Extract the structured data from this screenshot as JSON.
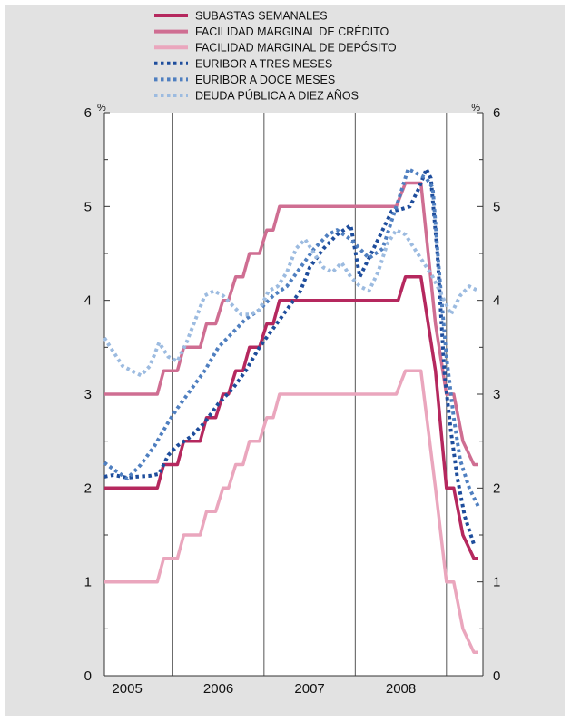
{
  "chart_data": {
    "type": "line",
    "title": "",
    "xlabel": "",
    "ylabel": "%",
    "ylabel_right": "%",
    "ylim": [
      0,
      6
    ],
    "y_ticks": [
      "0",
      "1",
      "2",
      "3",
      "4",
      "5",
      "6"
    ],
    "x_range": [
      2004.75,
      2008.9
    ],
    "x_ticks": [
      {
        "label": "2005",
        "at": 2005.0
      },
      {
        "label": "2006",
        "at": 2006.0
      },
      {
        "label": "2007",
        "at": 2007.0
      },
      {
        "label": "2008",
        "at": 2008.0
      }
    ],
    "year_boundaries": [
      2005.5,
      2006.5,
      2007.5,
      2008.5
    ],
    "grid": false,
    "legend_position": "top",
    "series": [
      {
        "name": "SUBASTAS SEMANALES",
        "color": "#b5285e",
        "style": "solid",
        "x": [
          2004.75,
          2005.33,
          2005.4,
          2005.55,
          2005.62,
          2005.8,
          2005.87,
          2005.97,
          2006.05,
          2006.11,
          2006.19,
          2006.27,
          2006.34,
          2006.45,
          2006.53,
          2006.6,
          2006.67,
          2006.85,
          2006.93,
          2007.45,
          2007.53,
          2007.7,
          2007.77,
          2007.97,
          2008.05,
          2008.22,
          2008.38,
          2008.5,
          2008.58,
          2008.68,
          2008.8,
          2008.85
        ],
        "y": [
          2,
          2,
          2.25,
          2.25,
          2.5,
          2.5,
          2.75,
          2.75,
          3,
          3,
          3.25,
          3.25,
          3.5,
          3.5,
          3.75,
          3.75,
          4,
          4,
          4,
          4,
          4,
          4,
          4,
          4,
          4.25,
          4.25,
          3.25,
          2.0,
          2.0,
          1.5,
          1.25,
          1.25
        ]
      },
      {
        "name": "FACILIDAD MARGINAL DE CRÉDITO",
        "color": "#cf6e92",
        "style": "solid",
        "x": [
          2004.75,
          2005.33,
          2005.4,
          2005.55,
          2005.62,
          2005.8,
          2005.87,
          2005.97,
          2006.05,
          2006.11,
          2006.19,
          2006.27,
          2006.34,
          2006.45,
          2006.53,
          2006.6,
          2006.67,
          2006.85,
          2006.93,
          2007.95,
          2008.05,
          2008.22,
          2008.38,
          2008.5,
          2008.58,
          2008.68,
          2008.8,
          2008.85
        ],
        "y": [
          3,
          3,
          3.25,
          3.25,
          3.5,
          3.5,
          3.75,
          3.75,
          4,
          4,
          4.25,
          4.25,
          4.5,
          4.5,
          4.75,
          4.75,
          5,
          5,
          5,
          5,
          5.25,
          5.25,
          3.75,
          3.0,
          3.0,
          2.5,
          2.25,
          2.25
        ]
      },
      {
        "name": "FACILIDAD MARGINAL DE DEPÓSITO",
        "color": "#eaa6bd",
        "style": "solid",
        "x": [
          2004.75,
          2005.33,
          2005.4,
          2005.55,
          2005.62,
          2005.8,
          2005.87,
          2005.97,
          2006.05,
          2006.11,
          2006.19,
          2006.27,
          2006.34,
          2006.45,
          2006.53,
          2006.6,
          2006.67,
          2006.85,
          2006.93,
          2007.95,
          2008.05,
          2008.22,
          2008.38,
          2008.5,
          2008.58,
          2008.68,
          2008.8,
          2008.85
        ],
        "y": [
          1,
          1,
          1.25,
          1.25,
          1.5,
          1.5,
          1.75,
          1.75,
          2,
          2,
          2.25,
          2.25,
          2.5,
          2.5,
          2.75,
          2.75,
          3,
          3,
          3,
          3,
          3.25,
          3.25,
          2.0,
          1.0,
          1.0,
          0.5,
          0.25,
          0.25
        ]
      },
      {
        "name": "EURIBOR A TRES MESES",
        "color": "#1e4d9c",
        "style": "dotted",
        "x": [
          2004.75,
          2004.85,
          2005.0,
          2005.1,
          2005.25,
          2005.35,
          2005.45,
          2005.55,
          2005.7,
          2005.85,
          2006.0,
          2006.15,
          2006.3,
          2006.45,
          2006.6,
          2006.75,
          2006.9,
          2007.0,
          2007.15,
          2007.3,
          2007.45,
          2007.55,
          2007.65,
          2007.8,
          2007.9,
          2008.0,
          2008.1,
          2008.2,
          2008.28,
          2008.33,
          2008.4,
          2008.48,
          2008.55,
          2008.62,
          2008.7,
          2008.8
        ],
        "y": [
          2.12,
          2.14,
          2.11,
          2.12,
          2.13,
          2.15,
          2.35,
          2.45,
          2.55,
          2.7,
          2.9,
          3.05,
          3.25,
          3.5,
          3.7,
          3.9,
          4.1,
          4.35,
          4.55,
          4.7,
          4.8,
          4.25,
          4.45,
          4.75,
          4.95,
          4.97,
          5.0,
          5.2,
          5.4,
          5.3,
          4.5,
          3.2,
          2.6,
          2.1,
          1.7,
          1.4
        ]
      },
      {
        "name": "EURIBOR A DOCE MESES",
        "color": "#4f7fc0",
        "style": "dotted",
        "x": [
          2004.75,
          2004.85,
          2005.0,
          2005.15,
          2005.3,
          2005.45,
          2005.55,
          2005.7,
          2005.85,
          2006.0,
          2006.15,
          2006.3,
          2006.45,
          2006.6,
          2006.75,
          2006.9,
          2007.05,
          2007.2,
          2007.3,
          2007.45,
          2007.55,
          2007.65,
          2007.8,
          2007.9,
          2008.0,
          2008.08,
          2008.18,
          2008.28,
          2008.35,
          2008.42,
          2008.5,
          2008.58,
          2008.65,
          2008.75,
          2008.85
        ],
        "y": [
          2.27,
          2.2,
          2.1,
          2.25,
          2.45,
          2.7,
          2.85,
          3.05,
          3.25,
          3.5,
          3.65,
          3.8,
          3.9,
          4.05,
          4.15,
          4.35,
          4.55,
          4.7,
          4.75,
          4.65,
          4.55,
          4.45,
          4.55,
          4.85,
          5.15,
          5.4,
          5.35,
          5.3,
          5.2,
          4.3,
          3.4,
          2.75,
          2.3,
          2.0,
          1.8
        ]
      },
      {
        "name": "DEUDA PÚBLICA A DIEZ AÑOS",
        "color": "#9cbbe0",
        "style": "dotted",
        "x": [
          2004.75,
          2004.85,
          2004.95,
          2005.05,
          2005.15,
          2005.25,
          2005.35,
          2005.45,
          2005.55,
          2005.65,
          2005.75,
          2005.85,
          2005.95,
          2006.05,
          2006.15,
          2006.25,
          2006.35,
          2006.45,
          2006.55,
          2006.65,
          2006.75,
          2006.85,
          2006.95,
          2007.05,
          2007.15,
          2007.25,
          2007.35,
          2007.45,
          2007.55,
          2007.65,
          2007.75,
          2007.85,
          2007.95,
          2008.05,
          2008.15,
          2008.25,
          2008.35,
          2008.45,
          2008.55,
          2008.65,
          2008.75,
          2008.85
        ],
        "y": [
          3.6,
          3.45,
          3.3,
          3.25,
          3.2,
          3.3,
          3.55,
          3.4,
          3.35,
          3.55,
          3.8,
          4.05,
          4.1,
          4.05,
          3.95,
          3.85,
          3.85,
          3.9,
          4.1,
          4.15,
          4.3,
          4.55,
          4.65,
          4.5,
          4.35,
          4.3,
          4.4,
          4.25,
          4.15,
          4.1,
          4.3,
          4.6,
          4.75,
          4.7,
          4.55,
          4.4,
          4.25,
          4.05,
          3.85,
          4.05,
          4.15,
          4.1
        ]
      }
    ]
  }
}
